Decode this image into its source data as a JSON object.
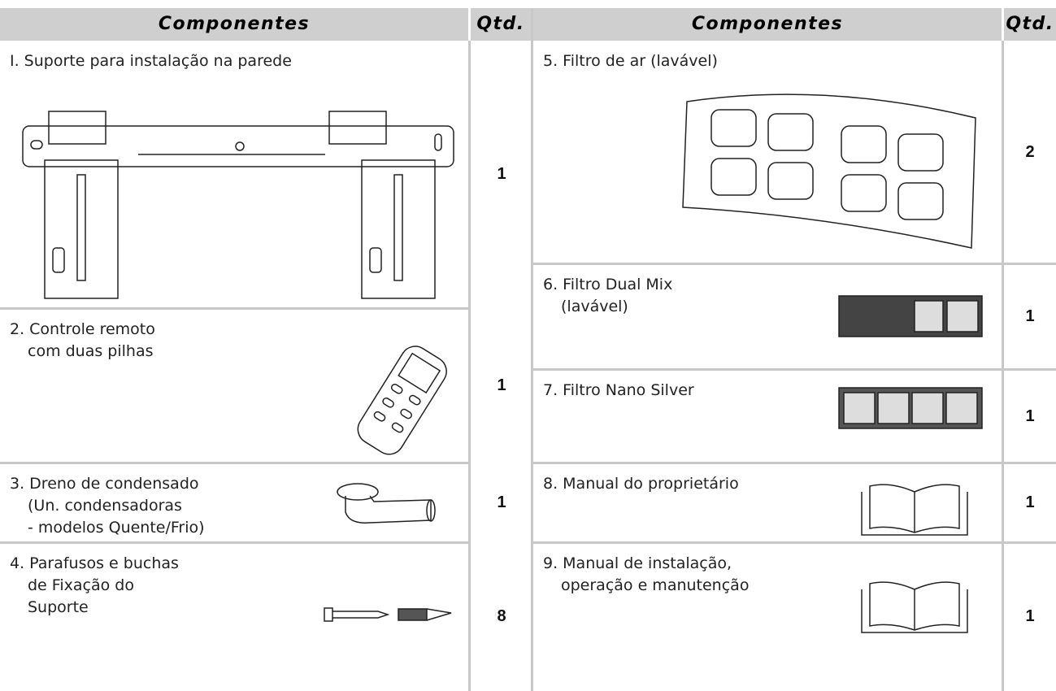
{
  "header": {
    "components_left": "Componentes",
    "qty_left": "Qtd.",
    "components_right": "Componentes",
    "qty_right": "Qtd."
  },
  "items": [
    {
      "lines": [
        "I. Suporte para instalação na parede"
      ],
      "qty": 1
    },
    {
      "lines": [
        "2. Controle remoto",
        "com duas pilhas"
      ],
      "qty": 1
    },
    {
      "lines": [
        "3. Dreno de condensado",
        "(Un. condensadoras",
        "- modelos Quente/Frio)"
      ],
      "qty": 1
    },
    {
      "lines": [
        "4. Parafusos e buchas",
        "de Fixação do",
        "Suporte"
      ],
      "qty": 8
    },
    {
      "lines": [
        "5. Filtro de ar (lavável)"
      ],
      "qty": 2
    },
    {
      "lines": [
        "6. Filtro Dual Mix",
        "(lavável)"
      ],
      "qty": 1
    },
    {
      "lines": [
        "7. Filtro Nano Silver"
      ],
      "qty": 1
    },
    {
      "lines": [
        "8. Manual do proprietário"
      ],
      "qty": 1
    },
    {
      "lines": [
        "9. Manual de instalação,",
        "operação e manutenção"
      ],
      "qty": 1
    }
  ]
}
